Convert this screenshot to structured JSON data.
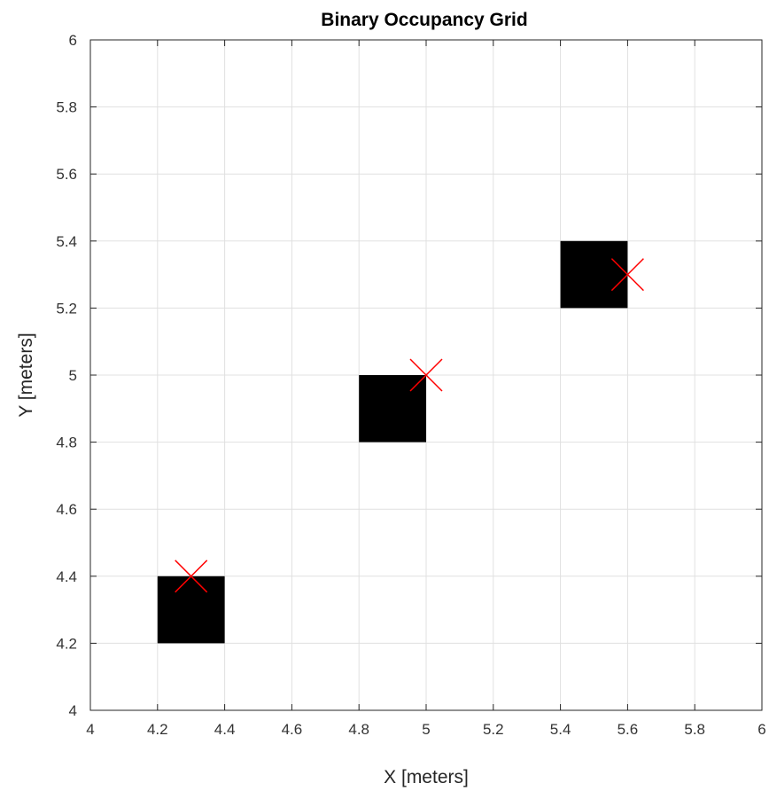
{
  "chart_data": {
    "type": "occupancy-grid",
    "title": "Binary Occupancy Grid",
    "xlabel": "X [meters]",
    "ylabel": "Y [meters]",
    "xlim": [
      4,
      6
    ],
    "ylim": [
      4,
      6
    ],
    "grid": true,
    "xticks": [
      "4",
      "4.2",
      "4.4",
      "4.6",
      "4.8",
      "5",
      "5.2",
      "5.4",
      "5.6",
      "5.8",
      "6"
    ],
    "yticks": [
      "4",
      "4.2",
      "4.4",
      "4.6",
      "4.8",
      "5",
      "5.2",
      "5.4",
      "5.6",
      "5.8",
      "6"
    ],
    "xtick_values": [
      4,
      4.2,
      4.4,
      4.6,
      4.8,
      5,
      5.2,
      5.4,
      5.6,
      5.8,
      6
    ],
    "ytick_values": [
      4,
      4.2,
      4.4,
      4.6,
      4.8,
      5,
      5.2,
      5.4,
      5.6,
      5.8,
      6
    ],
    "occupied_cells": [
      {
        "x": [
          4.2,
          4.4
        ],
        "y": [
          4.2,
          4.4
        ]
      },
      {
        "x": [
          4.8,
          5.0
        ],
        "y": [
          4.8,
          5.0
        ]
      },
      {
        "x": [
          5.4,
          5.6
        ],
        "y": [
          5.2,
          5.4
        ]
      }
    ],
    "markers": [
      {
        "x": 4.3,
        "y": 4.4
      },
      {
        "x": 5.0,
        "y": 5.0
      },
      {
        "x": 5.6,
        "y": 5.3
      }
    ],
    "colors": {
      "occupied": "#000000",
      "free": "#ffffff",
      "marker": "#ff0000",
      "grid": "#e0e0e0",
      "axis": "#262626"
    }
  }
}
